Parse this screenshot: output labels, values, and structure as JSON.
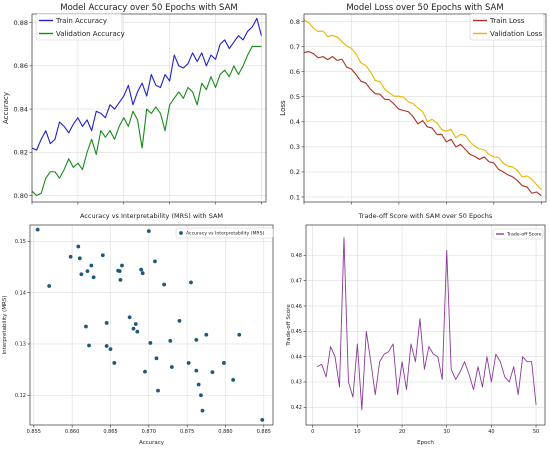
{
  "chart_data": [
    {
      "type": "line",
      "title": "Model Accuracy over 50 Epochs with SAM",
      "xlabel": "",
      "ylabel": "Accuracy",
      "xlim": [
        0,
        51
      ],
      "ylim": [
        0.797,
        0.884
      ],
      "yticks": [
        "0.80",
        "0.82",
        "0.84",
        "0.86",
        "0.88"
      ],
      "ytick_values": [
        0.8,
        0.82,
        0.84,
        0.86,
        0.88
      ],
      "legend": "upper-left",
      "grid": true,
      "series": [
        {
          "name": "Train Accuracy",
          "color": "#2222cc",
          "values": [
            0.822,
            0.821,
            0.826,
            0.83,
            0.824,
            0.826,
            0.834,
            0.832,
            0.829,
            0.833,
            0.836,
            0.832,
            0.835,
            0.83,
            0.839,
            0.838,
            0.836,
            0.842,
            0.84,
            0.843,
            0.846,
            0.851,
            0.842,
            0.848,
            0.852,
            0.846,
            0.856,
            0.851,
            0.85,
            0.856,
            0.853,
            0.865,
            0.86,
            0.859,
            0.861,
            0.866,
            0.862,
            0.866,
            0.86,
            0.865,
            0.863,
            0.87,
            0.872,
            0.868,
            0.871,
            0.874,
            0.872,
            0.876,
            0.878,
            0.882,
            0.874
          ]
        },
        {
          "name": "Validation Accuracy",
          "color": "#1a8a1a",
          "values": [
            0.802,
            0.8,
            0.801,
            0.808,
            0.811,
            0.811,
            0.808,
            0.812,
            0.817,
            0.813,
            0.815,
            0.812,
            0.82,
            0.826,
            0.819,
            0.83,
            0.827,
            0.83,
            0.826,
            0.832,
            0.836,
            0.832,
            0.839,
            0.835,
            0.822,
            0.84,
            0.838,
            0.841,
            0.838,
            0.83,
            0.842,
            0.845,
            0.848,
            0.845,
            0.85,
            0.848,
            0.842,
            0.852,
            0.849,
            0.855,
            0.85,
            0.856,
            0.858,
            0.855,
            0.86,
            0.856,
            0.86,
            0.865,
            0.869,
            0.869,
            0.869
          ]
        }
      ]
    },
    {
      "type": "line",
      "title": "Model Loss over 50 Epochs with SAM",
      "xlabel": "",
      "ylabel": "Loss",
      "xlim": [
        0,
        51
      ],
      "ylim": [
        0.08,
        0.83
      ],
      "yticks": [
        "0.1",
        "0.2",
        "0.3",
        "0.4",
        "0.5",
        "0.6",
        "0.7",
        "0.8"
      ],
      "ytick_values": [
        0.1,
        0.2,
        0.3,
        0.4,
        0.5,
        0.6,
        0.7,
        0.8
      ],
      "legend": "upper-right",
      "grid": true,
      "series": [
        {
          "name": "Train Loss",
          "color": "#a83228",
          "values": [
            0.676,
            0.68,
            0.672,
            0.655,
            0.66,
            0.648,
            0.66,
            0.645,
            0.65,
            0.618,
            0.61,
            0.588,
            0.562,
            0.555,
            0.53,
            0.512,
            0.51,
            0.49,
            0.488,
            0.47,
            0.45,
            0.445,
            0.44,
            0.42,
            0.392,
            0.405,
            0.38,
            0.375,
            0.35,
            0.35,
            0.32,
            0.33,
            0.3,
            0.31,
            0.29,
            0.27,
            0.262,
            0.25,
            0.26,
            0.24,
            0.236,
            0.21,
            0.2,
            0.188,
            0.18,
            0.165,
            0.145,
            0.14,
            0.115,
            0.12,
            0.105
          ]
        },
        {
          "name": "Validation Loss",
          "color": "#e6b800",
          "values": [
            0.806,
            0.795,
            0.773,
            0.76,
            0.762,
            0.74,
            0.745,
            0.738,
            0.72,
            0.703,
            0.693,
            0.669,
            0.635,
            0.625,
            0.6,
            0.565,
            0.56,
            0.53,
            0.515,
            0.502,
            0.502,
            0.498,
            0.48,
            0.472,
            0.455,
            0.441,
            0.4,
            0.41,
            0.395,
            0.37,
            0.362,
            0.37,
            0.336,
            0.35,
            0.345,
            0.32,
            0.302,
            0.292,
            0.288,
            0.27,
            0.26,
            0.258,
            0.235,
            0.223,
            0.22,
            0.205,
            0.18,
            0.184,
            0.171,
            0.15,
            0.13
          ]
        }
      ]
    },
    {
      "type": "scatter",
      "title": "Accuracy vs Interpretability (MRS) with SAM",
      "xlabel": "Accuracy",
      "ylabel": "Interpretability (MRS)",
      "xlim": [
        0.8545,
        0.8862
      ],
      "ylim": [
        0.1142,
        0.1532
      ],
      "xticks": [
        "0.855",
        "0.860",
        "0.865",
        "0.870",
        "0.875",
        "0.880",
        "0.885"
      ],
      "xtick_values": [
        0.855,
        0.86,
        0.865,
        0.87,
        0.875,
        0.88,
        0.885
      ],
      "yticks": [
        "0.12",
        "0.13",
        "0.14",
        "0.15"
      ],
      "ytick_values": [
        0.12,
        0.13,
        0.14,
        0.15
      ],
      "legend": "upper-right",
      "grid": true,
      "series": [
        {
          "name": "Accuracy vs Interpretability (MRS)",
          "color": "#1d5a78",
          "points": [
            [
              0.8555,
              0.1523
            ],
            [
              0.857,
              0.1413
            ],
            [
              0.8598,
              0.147
            ],
            [
              0.8608,
              0.149
            ],
            [
              0.861,
              0.1467
            ],
            [
              0.8612,
              0.1436
            ],
            [
              0.8618,
              0.1334
            ],
            [
              0.862,
              0.1442
            ],
            [
              0.8625,
              0.1453
            ],
            [
              0.8622,
              0.1297
            ],
            [
              0.8628,
              0.143
            ],
            [
              0.864,
              0.1473
            ],
            [
              0.8645,
              0.1296
            ],
            [
              0.8645,
              0.1341
            ],
            [
              0.865,
              0.129
            ],
            [
              0.8655,
              0.1263
            ],
            [
              0.866,
              0.1443
            ],
            [
              0.8662,
              0.1442
            ],
            [
              0.8663,
              0.1425
            ],
            [
              0.8665,
              0.1453
            ],
            [
              0.8675,
              0.1352
            ],
            [
              0.868,
              0.133
            ],
            [
              0.8683,
              0.1339
            ],
            [
              0.8685,
              0.1324
            ],
            [
              0.869,
              0.1445
            ],
            [
              0.8692,
              0.1438
            ],
            [
              0.8695,
              0.1246
            ],
            [
              0.87,
              0.152
            ],
            [
              0.8702,
              0.1302
            ],
            [
              0.8708,
              0.1461
            ],
            [
              0.8712,
              0.1209
            ],
            [
              0.871,
              0.1272
            ],
            [
              0.872,
              0.1416
            ],
            [
              0.8728,
              0.1306
            ],
            [
              0.873,
              0.1255
            ],
            [
              0.874,
              0.1345
            ],
            [
              0.8752,
              0.1263
            ],
            [
              0.8755,
              0.142
            ],
            [
              0.8762,
              0.1248
            ],
            [
              0.8762,
              0.1308
            ],
            [
              0.8765,
              0.1221
            ],
            [
              0.8768,
              0.12
            ],
            [
              0.877,
              0.117
            ],
            [
              0.8775,
              0.1318
            ],
            [
              0.8783,
              0.1245
            ],
            [
              0.8798,
              0.1263
            ],
            [
              0.881,
              0.123
            ],
            [
              0.8818,
              0.1318
            ],
            [
              0.8848,
              0.1152
            ]
          ]
        }
      ]
    },
    {
      "type": "line",
      "title": "Trade-off Score with SAM over 50 Epochs",
      "xlabel": "Epoch",
      "ylabel": "Trade-off Score",
      "xlim": [
        -1.5,
        52
      ],
      "ylim": [
        0.413,
        0.492
      ],
      "xticks": [
        "0",
        "10",
        "20",
        "30",
        "40",
        "50"
      ],
      "xtick_values": [
        0,
        10,
        20,
        30,
        40,
        50
      ],
      "yticks": [
        "0.42",
        "0.43",
        "0.44",
        "0.45",
        "0.46",
        "0.47",
        "0.48"
      ],
      "ytick_values": [
        0.42,
        0.43,
        0.44,
        0.45,
        0.46,
        0.47,
        0.48
      ],
      "legend": "upper-right",
      "grid": true,
      "series": [
        {
          "name": "Trade-off Score",
          "color": "#8a3a9a",
          "x": [
            1,
            2,
            3,
            4,
            5,
            6,
            7,
            8,
            9,
            10,
            11,
            12,
            13,
            14,
            15,
            16,
            17,
            18,
            19,
            20,
            21,
            22,
            23,
            24,
            25,
            26,
            27,
            28,
            29,
            30,
            31,
            32,
            33,
            34,
            35,
            36,
            37,
            38,
            39,
            40,
            41,
            42,
            43,
            44,
            45,
            46,
            47,
            48,
            49,
            50
          ],
          "values": [
            0.436,
            0.437,
            0.432,
            0.444,
            0.44,
            0.428,
            0.487,
            0.43,
            0.424,
            0.445,
            0.419,
            0.45,
            0.438,
            0.425,
            0.438,
            0.441,
            0.442,
            0.445,
            0.425,
            0.438,
            0.427,
            0.445,
            0.438,
            0.455,
            0.435,
            0.444,
            0.441,
            0.44,
            0.431,
            0.482,
            0.435,
            0.431,
            0.434,
            0.438,
            0.433,
            0.427,
            0.436,
            0.428,
            0.44,
            0.43,
            0.441,
            0.438,
            0.432,
            0.43,
            0.436,
            0.425,
            0.44,
            0.438,
            0.438,
            0.421
          ]
        }
      ]
    }
  ]
}
